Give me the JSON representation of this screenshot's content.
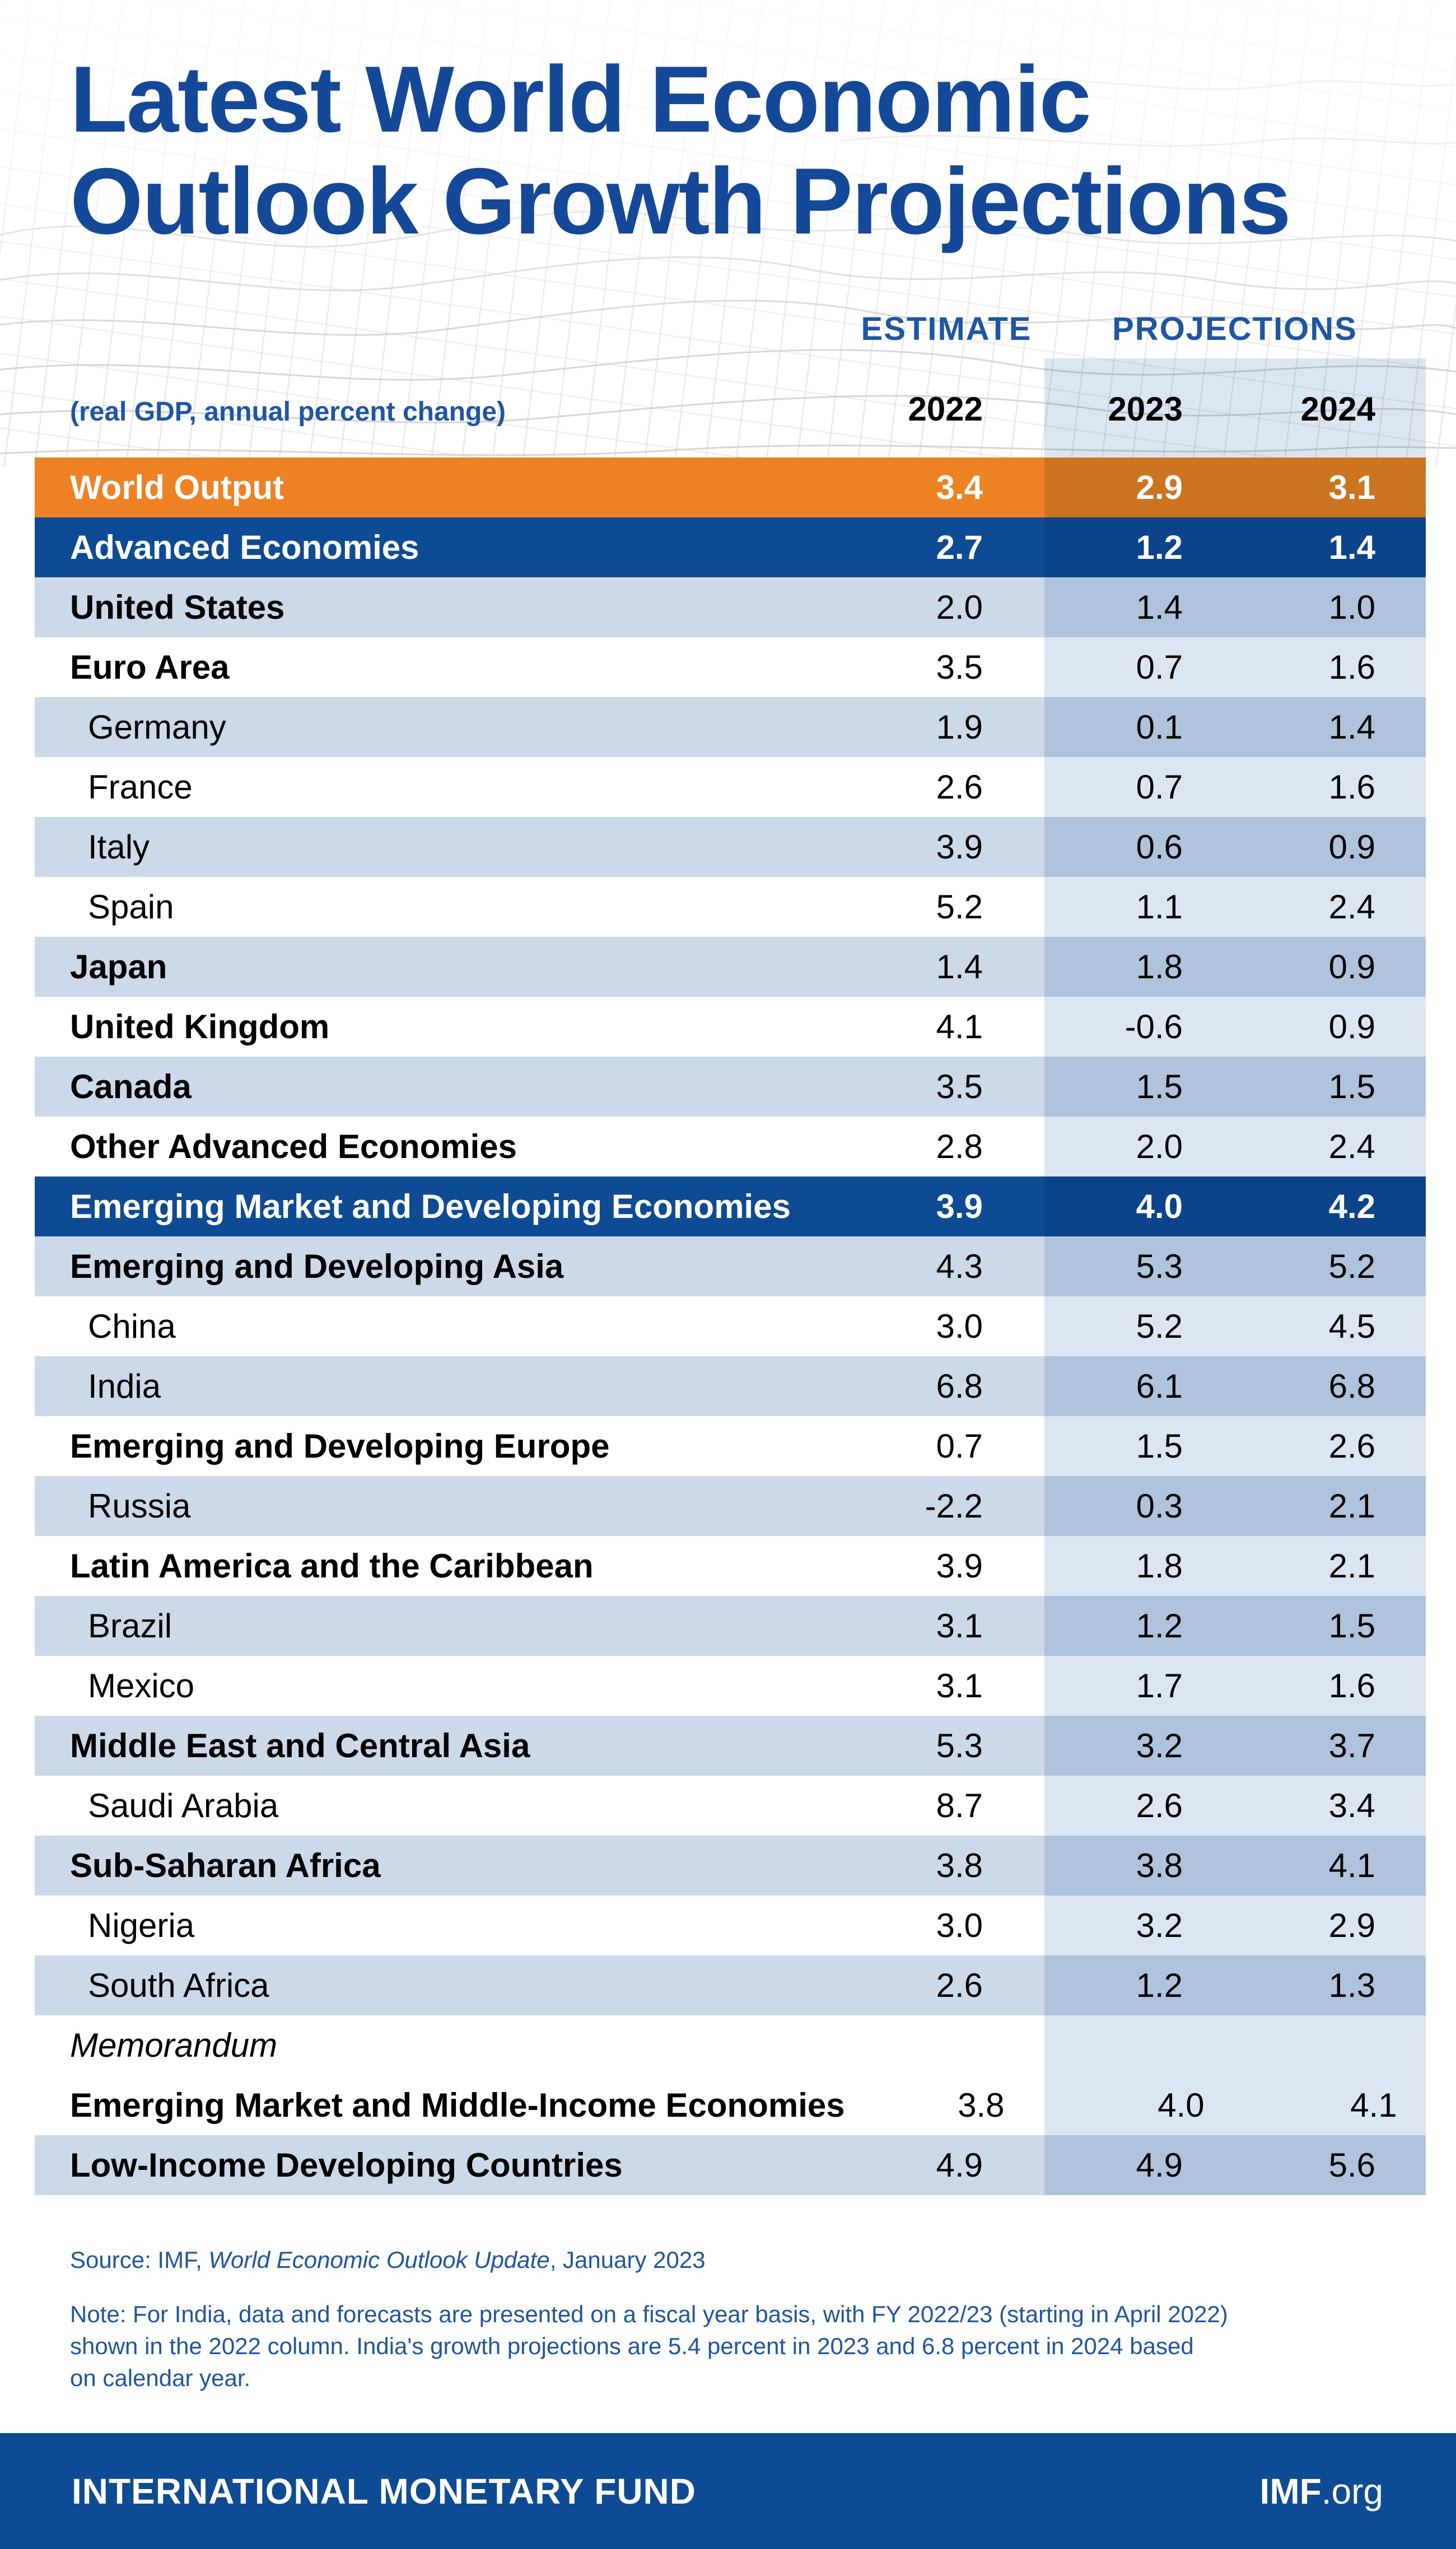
{
  "header": {
    "title_line1": "Latest World Economic",
    "title_line2": "Outlook Growth Projections",
    "estimate_label": "ESTIMATE",
    "projections_label": "PROJECTIONS",
    "subtitle": "(real GDP, annual percent change)",
    "years": [
      "2022",
      "2023",
      "2024"
    ]
  },
  "table": {
    "rows": [
      {
        "label": "World Output",
        "bg": "orange",
        "hero": true,
        "bold": true,
        "indent": false,
        "italic": false,
        "values": [
          "3.4",
          "2.9",
          "3.1"
        ]
      },
      {
        "label": "Advanced Economies",
        "bg": "blue",
        "hero": true,
        "bold": true,
        "indent": false,
        "italic": false,
        "values": [
          "2.7",
          "1.2",
          "1.4"
        ]
      },
      {
        "label": "United States",
        "bg": "light",
        "hero": false,
        "bold": true,
        "indent": false,
        "italic": false,
        "values": [
          "2.0",
          "1.4",
          "1.0"
        ]
      },
      {
        "label": "Euro Area",
        "bg": "white",
        "hero": false,
        "bold": true,
        "indent": false,
        "italic": false,
        "values": [
          "3.5",
          "0.7",
          "1.6"
        ]
      },
      {
        "label": "Germany",
        "bg": "light",
        "hero": false,
        "bold": false,
        "indent": true,
        "italic": false,
        "values": [
          "1.9",
          "0.1",
          "1.4"
        ]
      },
      {
        "label": "France",
        "bg": "white",
        "hero": false,
        "bold": false,
        "indent": true,
        "italic": false,
        "values": [
          "2.6",
          "0.7",
          "1.6"
        ]
      },
      {
        "label": "Italy",
        "bg": "light",
        "hero": false,
        "bold": false,
        "indent": true,
        "italic": false,
        "values": [
          "3.9",
          "0.6",
          "0.9"
        ]
      },
      {
        "label": "Spain",
        "bg": "white",
        "hero": false,
        "bold": false,
        "indent": true,
        "italic": false,
        "values": [
          "5.2",
          "1.1",
          "2.4"
        ]
      },
      {
        "label": "Japan",
        "bg": "light",
        "hero": false,
        "bold": true,
        "indent": false,
        "italic": false,
        "values": [
          "1.4",
          "1.8",
          "0.9"
        ]
      },
      {
        "label": "United Kingdom",
        "bg": "white",
        "hero": false,
        "bold": true,
        "indent": false,
        "italic": false,
        "values": [
          "4.1",
          "-0.6",
          "0.9"
        ]
      },
      {
        "label": "Canada",
        "bg": "light",
        "hero": false,
        "bold": true,
        "indent": false,
        "italic": false,
        "values": [
          "3.5",
          "1.5",
          "1.5"
        ]
      },
      {
        "label": "Other Advanced Economies",
        "bg": "white",
        "hero": false,
        "bold": true,
        "indent": false,
        "italic": false,
        "values": [
          "2.8",
          "2.0",
          "2.4"
        ]
      },
      {
        "label": "Emerging Market and Developing Economies",
        "bg": "blue",
        "hero": true,
        "bold": true,
        "indent": false,
        "italic": false,
        "values": [
          "3.9",
          "4.0",
          "4.2"
        ]
      },
      {
        "label": "Emerging and Developing Asia",
        "bg": "light",
        "hero": false,
        "bold": true,
        "indent": false,
        "italic": false,
        "values": [
          "4.3",
          "5.3",
          "5.2"
        ]
      },
      {
        "label": "China",
        "bg": "white",
        "hero": false,
        "bold": false,
        "indent": true,
        "italic": false,
        "values": [
          "3.0",
          "5.2",
          "4.5"
        ]
      },
      {
        "label": "India",
        "bg": "light",
        "hero": false,
        "bold": false,
        "indent": true,
        "italic": false,
        "values": [
          "6.8",
          "6.1",
          "6.8"
        ]
      },
      {
        "label": "Emerging and Developing Europe",
        "bg": "white",
        "hero": false,
        "bold": true,
        "indent": false,
        "italic": false,
        "values": [
          "0.7",
          "1.5",
          "2.6"
        ]
      },
      {
        "label": "Russia",
        "bg": "light",
        "hero": false,
        "bold": false,
        "indent": true,
        "italic": false,
        "values": [
          "-2.2",
          "0.3",
          "2.1"
        ]
      },
      {
        "label": "Latin America and the Caribbean",
        "bg": "white",
        "hero": false,
        "bold": true,
        "indent": false,
        "italic": false,
        "values": [
          "3.9",
          "1.8",
          "2.1"
        ]
      },
      {
        "label": "Brazil",
        "bg": "light",
        "hero": false,
        "bold": false,
        "indent": true,
        "italic": false,
        "values": [
          "3.1",
          "1.2",
          "1.5"
        ]
      },
      {
        "label": "Mexico",
        "bg": "white",
        "hero": false,
        "bold": false,
        "indent": true,
        "italic": false,
        "values": [
          "3.1",
          "1.7",
          "1.6"
        ]
      },
      {
        "label": "Middle East and Central Asia",
        "bg": "light",
        "hero": false,
        "bold": true,
        "indent": false,
        "italic": false,
        "values": [
          "5.3",
          "3.2",
          "3.7"
        ]
      },
      {
        "label": "Saudi Arabia",
        "bg": "white",
        "hero": false,
        "bold": false,
        "indent": true,
        "italic": false,
        "values": [
          "8.7",
          "2.6",
          "3.4"
        ]
      },
      {
        "label": "Sub-Saharan Africa",
        "bg": "light",
        "hero": false,
        "bold": true,
        "indent": false,
        "italic": false,
        "values": [
          "3.8",
          "3.8",
          "4.1"
        ]
      },
      {
        "label": "Nigeria",
        "bg": "white",
        "hero": false,
        "bold": false,
        "indent": true,
        "italic": false,
        "values": [
          "3.0",
          "3.2",
          "2.9"
        ]
      },
      {
        "label": "South Africa",
        "bg": "light",
        "hero": false,
        "bold": false,
        "indent": true,
        "italic": false,
        "values": [
          "2.6",
          "1.2",
          "1.3"
        ]
      },
      {
        "label": "Memorandum",
        "bg": "white",
        "hero": false,
        "bold": false,
        "indent": false,
        "italic": true,
        "values": [
          "",
          "",
          ""
        ]
      },
      {
        "label": "Emerging Market and Middle-Income Economies",
        "bg": "white",
        "hero": false,
        "bold": true,
        "indent": false,
        "italic": false,
        "values": [
          "3.8",
          "4.0",
          "4.1"
        ]
      },
      {
        "label": "Low-Income Developing Countries",
        "bg": "light",
        "hero": false,
        "bold": true,
        "indent": false,
        "italic": false,
        "values": [
          "4.9",
          "4.9",
          "5.6"
        ]
      }
    ]
  },
  "notes": {
    "source_prefix": "Source: IMF, ",
    "source_italic": "World Economic Outlook Update",
    "source_suffix": ", January 2023",
    "note_text": "Note: For India, data and forecasts are presented on a fiscal year basis, with FY 2022/23 (starting in April 2022)\nshown in the 2022 column. India's growth projections are 5.4 percent in 2023 and 6.8 percent in 2024 based\non calendar year."
  },
  "footer": {
    "org": "INTERNATIONAL MONETARY FUND",
    "site_bold": "IMF",
    "site_suffix": ".org"
  },
  "colors": {
    "orange": "#EE8122",
    "dark_blue": "#0D4B94",
    "light_blue": "#CBD9E9",
    "projection_band": "#DCE6F2",
    "title_blue": "#14499A",
    "accent_blue": "#1D56A4"
  },
  "chart_data": {
    "type": "table",
    "title": "Latest World Economic Outlook Growth Projections",
    "unit": "real GDP, annual percent change",
    "columns": [
      "2022 (Estimate)",
      "2023 (Projections)",
      "2024 (Projections)"
    ],
    "categories": [
      "World Output",
      "Advanced Economies",
      "United States",
      "Euro Area",
      "Germany",
      "France",
      "Italy",
      "Spain",
      "Japan",
      "United Kingdom",
      "Canada",
      "Other Advanced Economies",
      "Emerging Market and Developing Economies",
      "Emerging and Developing Asia",
      "China",
      "India",
      "Emerging and Developing Europe",
      "Russia",
      "Latin America and the Caribbean",
      "Brazil",
      "Mexico",
      "Middle East and Central Asia",
      "Saudi Arabia",
      "Sub-Saharan Africa",
      "Nigeria",
      "South Africa",
      "Memorandum",
      "Emerging Market and Middle-Income Economies",
      "Low-Income Developing Countries"
    ],
    "series": [
      {
        "name": "2022",
        "values": [
          3.4,
          2.7,
          2.0,
          3.5,
          1.9,
          2.6,
          3.9,
          5.2,
          1.4,
          4.1,
          3.5,
          2.8,
          3.9,
          4.3,
          3.0,
          6.8,
          0.7,
          -2.2,
          3.9,
          3.1,
          3.1,
          5.3,
          8.7,
          3.8,
          3.0,
          2.6,
          null,
          3.8,
          4.9
        ]
      },
      {
        "name": "2023",
        "values": [
          2.9,
          1.2,
          1.4,
          0.7,
          0.1,
          0.7,
          0.6,
          1.1,
          1.8,
          -0.6,
          1.5,
          2.0,
          4.0,
          5.3,
          5.2,
          6.1,
          1.5,
          0.3,
          1.8,
          1.2,
          1.7,
          3.2,
          2.6,
          3.8,
          3.2,
          1.2,
          null,
          4.0,
          4.9
        ]
      },
      {
        "name": "2024",
        "values": [
          3.1,
          1.4,
          1.0,
          1.6,
          1.4,
          1.6,
          0.9,
          2.4,
          0.9,
          0.9,
          1.5,
          2.4,
          4.2,
          5.2,
          4.5,
          6.8,
          2.6,
          2.1,
          2.1,
          1.5,
          1.6,
          3.7,
          3.4,
          4.1,
          2.9,
          1.3,
          null,
          4.1,
          5.6
        ]
      }
    ],
    "source": "Source: IMF, World Economic Outlook Update, January 2023"
  }
}
